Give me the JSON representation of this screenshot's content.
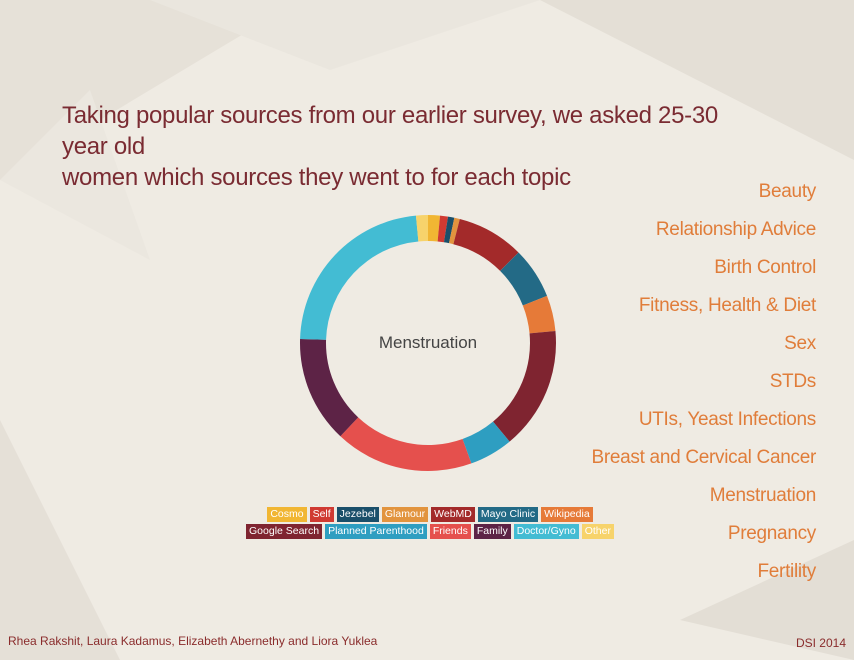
{
  "title_lines": [
    "Taking popular sources from our earlier survey, we asked 25-30 year old",
    "women which sources they went to for each topic"
  ],
  "topics": [
    "Beauty",
    "Relationship Advice",
    "Birth Control",
    "Fitness, Health & Diet",
    "Sex",
    "STDs",
    "UTIs, Yeast Infections",
    "Breast and Cervical Cancer",
    "Menstruation",
    "Pregnancy",
    "Fertility"
  ],
  "footer": {
    "authors": "Rhea Rakshit, Laura Kadamus, Elizabeth Abernethy and Liora Yuklea",
    "event": "DSI 2014"
  },
  "colors": {
    "title": "#7a2b32",
    "topic": "#e07d3a",
    "background": "#efebe3"
  },
  "chart_data": {
    "type": "pie",
    "donut": true,
    "center_label": "Menstruation",
    "slices": [
      {
        "label": "Cosmo",
        "value": 1.5,
        "color": "#f1b633"
      },
      {
        "label": "Self",
        "value": 1.0,
        "color": "#d03a32"
      },
      {
        "label": "Jezebel",
        "value": 0.8,
        "color": "#1a4f6a"
      },
      {
        "label": "Glamour",
        "value": 0.7,
        "color": "#e2943e"
      },
      {
        "label": "WebMD",
        "value": 8.5,
        "color": "#a32a2a"
      },
      {
        "label": "Mayo Clinic",
        "value": 6.5,
        "color": "#236a86"
      },
      {
        "label": "Wikipedia",
        "value": 4.5,
        "color": "#e67a38"
      },
      {
        "label": "Google Search",
        "value": 15.5,
        "color": "#7f2430"
      },
      {
        "label": "Planned Parenthood",
        "value": 5.5,
        "color": "#2e9ec1"
      },
      {
        "label": "Friends",
        "value": 17.5,
        "color": "#e5504d"
      },
      {
        "label": "Family",
        "value": 13.5,
        "color": "#5d2346"
      },
      {
        "label": "Doctor/Gyno",
        "value": 23.0,
        "color": "#43bcd3"
      },
      {
        "label": "Other",
        "value": 1.5,
        "color": "#f7d36b"
      }
    ],
    "legend_rows": [
      [
        "Cosmo",
        "Self",
        "Jezebel",
        "Glamour",
        "WebMD",
        "Mayo Clinic",
        "Wikipedia"
      ],
      [
        "Google Search",
        "Planned Parenthood",
        "Friends",
        "Family",
        "Doctor/Gyno",
        "Other"
      ]
    ]
  }
}
